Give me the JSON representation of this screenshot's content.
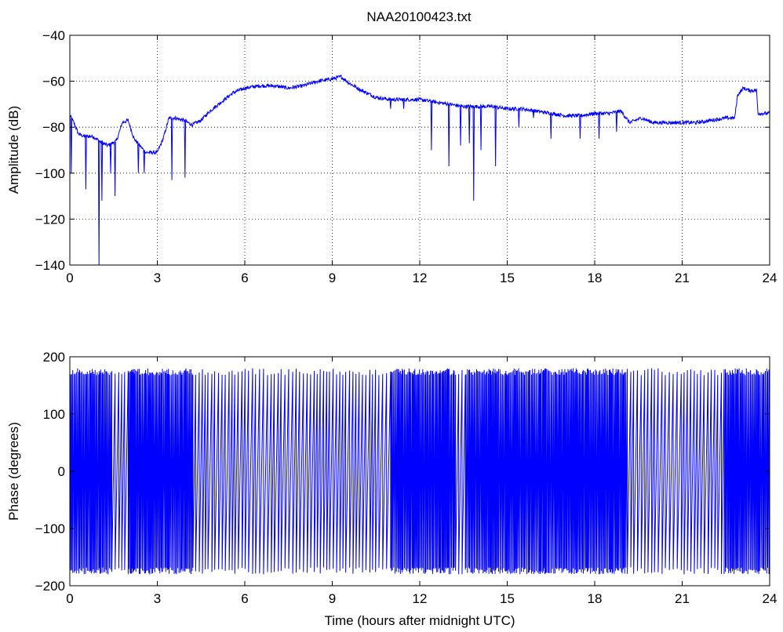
{
  "figure": {
    "title": "NAA20100423.txt",
    "series_color": "#0000ff"
  },
  "chart_data": [
    {
      "type": "line",
      "title": "NAA20100423.txt",
      "xlabel": "",
      "ylabel": "Amplitude (dB)",
      "xlim": [
        0,
        24
      ],
      "ylim": [
        -140,
        -40
      ],
      "xticks": [
        0,
        3,
        6,
        9,
        12,
        15,
        18,
        21,
        24
      ],
      "yticks": [
        -140,
        -120,
        -100,
        -80,
        -60,
        -40
      ],
      "grid": true,
      "series": [
        {
          "x": [
            0,
            0.1,
            0.3,
            0.5,
            0.8,
            1.0,
            1.3,
            1.6,
            1.8,
            2.0,
            2.2,
            2.4,
            2.6,
            2.8,
            3.0,
            3.2,
            3.4,
            3.6,
            3.9,
            4.2,
            4.5,
            4.8,
            5.2,
            5.6,
            6.0,
            6.5,
            7.0,
            7.5,
            8.0,
            8.5,
            9.0,
            9.3,
            9.6,
            10.0,
            10.5,
            11.0,
            11.5,
            12.0,
            12.5,
            13.0,
            13.5,
            14.0,
            14.5,
            15.0,
            15.5,
            16.0,
            16.5,
            17.0,
            17.5,
            18.0,
            18.5,
            18.9,
            19.2,
            19.6,
            20.0,
            20.5,
            21.0,
            21.5,
            22.0,
            22.5,
            22.8,
            22.9,
            23.1,
            23.3,
            23.55,
            23.6,
            24.0
          ],
          "y": [
            -75,
            -77,
            -83,
            -84,
            -84,
            -86,
            -88,
            -86,
            -78,
            -77,
            -85,
            -88,
            -91,
            -91,
            -91,
            -85,
            -76,
            -76,
            -77,
            -79,
            -77,
            -73,
            -69,
            -65,
            -63,
            -62,
            -62,
            -63,
            -62,
            -60,
            -59,
            -58,
            -61,
            -64,
            -67,
            -68,
            -68,
            -68,
            -69,
            -70,
            -71,
            -71,
            -71,
            -72,
            -72,
            -73,
            -74,
            -75,
            -75,
            -74,
            -74,
            -73,
            -78,
            -76,
            -78,
            -78,
            -78,
            -78,
            -77,
            -76,
            -76,
            -66,
            -63,
            -64,
            -64,
            -74,
            -74
          ]
        }
      ],
      "spikes": [
        {
          "x": 0.05,
          "y": -100
        },
        {
          "x": 0.55,
          "y": -107
        },
        {
          "x": 1.0,
          "y": -140
        },
        {
          "x": 1.1,
          "y": -112
        },
        {
          "x": 1.4,
          "y": -100
        },
        {
          "x": 1.55,
          "y": -110
        },
        {
          "x": 2.35,
          "y": -100
        },
        {
          "x": 2.55,
          "y": -100
        },
        {
          "x": 3.5,
          "y": -103
        },
        {
          "x": 3.95,
          "y": -102
        },
        {
          "x": 11.0,
          "y": -72
        },
        {
          "x": 11.45,
          "y": -72
        },
        {
          "x": 12.4,
          "y": -90
        },
        {
          "x": 13.0,
          "y": -97
        },
        {
          "x": 13.4,
          "y": -88
        },
        {
          "x": 13.7,
          "y": -87
        },
        {
          "x": 13.85,
          "y": -112
        },
        {
          "x": 14.1,
          "y": -90
        },
        {
          "x": 14.6,
          "y": -97
        },
        {
          "x": 15.4,
          "y": -80
        },
        {
          "x": 15.9,
          "y": -76
        },
        {
          "x": 16.5,
          "y": -85
        },
        {
          "x": 17.5,
          "y": -85
        },
        {
          "x": 18.15,
          "y": -85
        },
        {
          "x": 18.75,
          "y": -82
        }
      ]
    },
    {
      "type": "line",
      "title": "",
      "xlabel": "Time (hours after midnight UTC)",
      "ylabel": "Phase (degrees)",
      "xlim": [
        0,
        24
      ],
      "ylim": [
        -200,
        200
      ],
      "xticks": [
        0,
        3,
        6,
        9,
        12,
        15,
        18,
        21,
        24
      ],
      "yticks": [
        -200,
        -100,
        0,
        100,
        200
      ],
      "grid": false,
      "series": [
        {
          "description": "phase wrapping between -180 and 180 degrees",
          "range": [
            -180,
            180
          ],
          "dense_segments": [
            [
              0,
              1.4
            ],
            [
              1.9,
              4.2
            ],
            [
              11.0,
              13.2
            ],
            [
              13.5,
              19.1
            ],
            [
              22.4,
              24
            ]
          ]
        }
      ]
    }
  ]
}
